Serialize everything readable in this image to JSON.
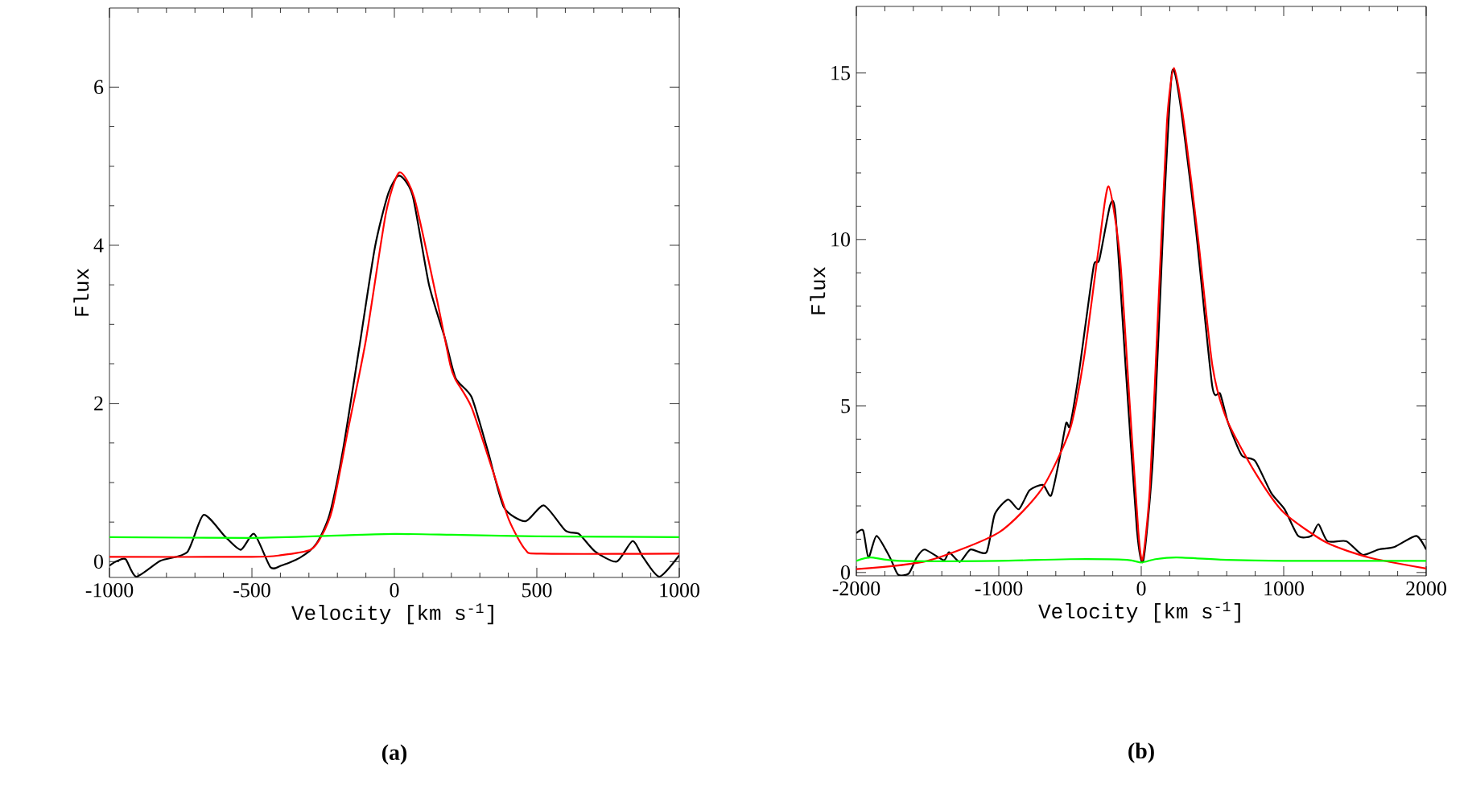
{
  "chart_data": [
    {
      "type": "line",
      "title": "(a)",
      "xlabel": "Velocity [km s$^{-1}$]",
      "ylabel": "Flux",
      "xlim": [
        -1000,
        1000
      ],
      "ylim": [
        -0.2,
        7
      ],
      "xticks": [
        -1000,
        -500,
        0,
        500,
        1000
      ],
      "yticks": [
        0,
        2,
        4,
        6
      ],
      "marker": "none",
      "line_style": "solid",
      "series": [
        {
          "color": "#000000",
          "x": [
            -1000,
            -972,
            -943,
            -906,
            -878,
            -821,
            -774,
            -727,
            -670,
            -595,
            -539,
            -492,
            -435,
            -397,
            -331,
            -275,
            -228,
            -181,
            -124,
            -68,
            -21,
            17,
            64,
            121,
            177,
            215,
            271,
            328,
            384,
            460,
            525,
            601,
            648,
            704,
            780,
            836,
            874,
            930,
            1000
          ],
          "values": [
            -0.05,
            0.01,
            0.03,
            -0.19,
            null,
            0.01,
            null,
            0.12,
            0.59,
            0.32,
            0.15,
            0.35,
            -0.07,
            -0.05,
            0.05,
            0.22,
            0.59,
            1.4,
            2.69,
            3.98,
            4.66,
            4.88,
            4.63,
            3.51,
            2.83,
            2.32,
            2.08,
            1.4,
            0.69,
            0.51,
            0.71,
            0.39,
            0.35,
            0.13,
            0,
            0.26,
            0.05,
            -0.19,
            0.08
          ]
        },
        {
          "color": "#ff0000",
          "x": [
            -1000,
            -500,
            -400,
            -294,
            -256,
            -218,
            -162,
            -100,
            -30,
            17,
            70,
            150,
            196,
            215,
            271,
            347,
            403,
            460,
            516,
            1000
          ],
          "values": [
            0.06,
            0.06,
            0.08,
            0.15,
            0.32,
            0.66,
            1.68,
            2.8,
            4.4,
            4.92,
            4.6,
            3.3,
            2.49,
            2.3,
            1.95,
            1.13,
            0.52,
            0.15,
            0.1,
            0.1
          ]
        },
        {
          "color": "#00ff00",
          "x": [
            -1000,
            -500,
            -200,
            0,
            200,
            500,
            1000
          ],
          "values": [
            0.31,
            0.3,
            0.33,
            0.35,
            0.34,
            0.32,
            0.31
          ]
        }
      ]
    },
    {
      "type": "line",
      "title": "(b)",
      "xlabel": "Velocity [km s$^{-1}$]",
      "ylabel": "Flux",
      "xlim": [
        -2000,
        2000
      ],
      "ylim": [
        -0.1,
        17
      ],
      "xticks": [
        -2000,
        -1000,
        0,
        1000,
        2000
      ],
      "yticks": [
        0,
        5,
        10,
        15
      ],
      "marker": "none",
      "line_style": "solid",
      "series": [
        {
          "color": "#000000",
          "x": [
            -2000,
            -1952,
            -1915,
            -1858,
            -1764,
            -1708,
            -1632,
            -1576,
            -1519,
            -1387,
            -1349,
            -1274,
            -1199,
            -1086,
            -1029,
            -935,
            -859,
            -784,
            -690,
            -633,
            -577,
            -528,
            -501,
            -445,
            -388,
            -332,
            -294,
            -219,
            -181,
            -106,
            -30,
            15,
            83,
            158,
            215,
            271,
            384,
            498,
            554,
            611,
            705,
            799,
            912,
            1006,
            1101,
            1195,
            1244,
            1308,
            1440,
            1553,
            1666,
            1779,
            1930,
            2000
          ],
          "values": [
            1.18,
            1.26,
            0.45,
            1.1,
            0.45,
            -0.06,
            -0.03,
            0.45,
            0.69,
            0.37,
            0.61,
            0.32,
            0.69,
            0.61,
            1.74,
            2.19,
            1.9,
            2.47,
            2.63,
            2.31,
            3.35,
            4.48,
            4.4,
            5.77,
            7.55,
            9.24,
            9.4,
            11.02,
            10.77,
            5.94,
            1.26,
            0.37,
            3.52,
            10.77,
            15.0,
            14.16,
            10.29,
            5.61,
            5.37,
            4.48,
            3.52,
            3.35,
            2.39,
            1.9,
            1.1,
            1.1,
            1.45,
            0.94,
            0.94,
            0.53,
            0.69,
            0.77,
            1.1,
            0.69
          ]
        },
        {
          "color": "#ff0000",
          "x": [
            -2000,
            -1500,
            -1000,
            -700,
            -500,
            -400,
            -300,
            -230,
            -150,
            -80,
            -20,
            10,
            60,
            120,
            180,
            230,
            300,
            400,
            500,
            600,
            800,
            1000,
            1300,
            1600,
            2000
          ],
          "values": [
            0.1,
            0.35,
            1.2,
            2.5,
            4.3,
            6.5,
            9.7,
            11.6,
            9.5,
            5.0,
            1.2,
            0.4,
            2.5,
            8.0,
            13.5,
            15.15,
            13.5,
            10.0,
            6.2,
            4.6,
            3.0,
            1.8,
            0.9,
            0.45,
            0.12
          ]
        },
        {
          "color": "#00ff00",
          "x": [
            -2000,
            -1900,
            -1700,
            -1000,
            -500,
            -100,
            0,
            100,
            250,
            600,
            1000,
            2000
          ],
          "values": [
            0.35,
            0.45,
            0.35,
            0.35,
            0.4,
            0.38,
            0.3,
            0.4,
            0.45,
            0.38,
            0.35,
            0.35
          ]
        }
      ]
    }
  ]
}
